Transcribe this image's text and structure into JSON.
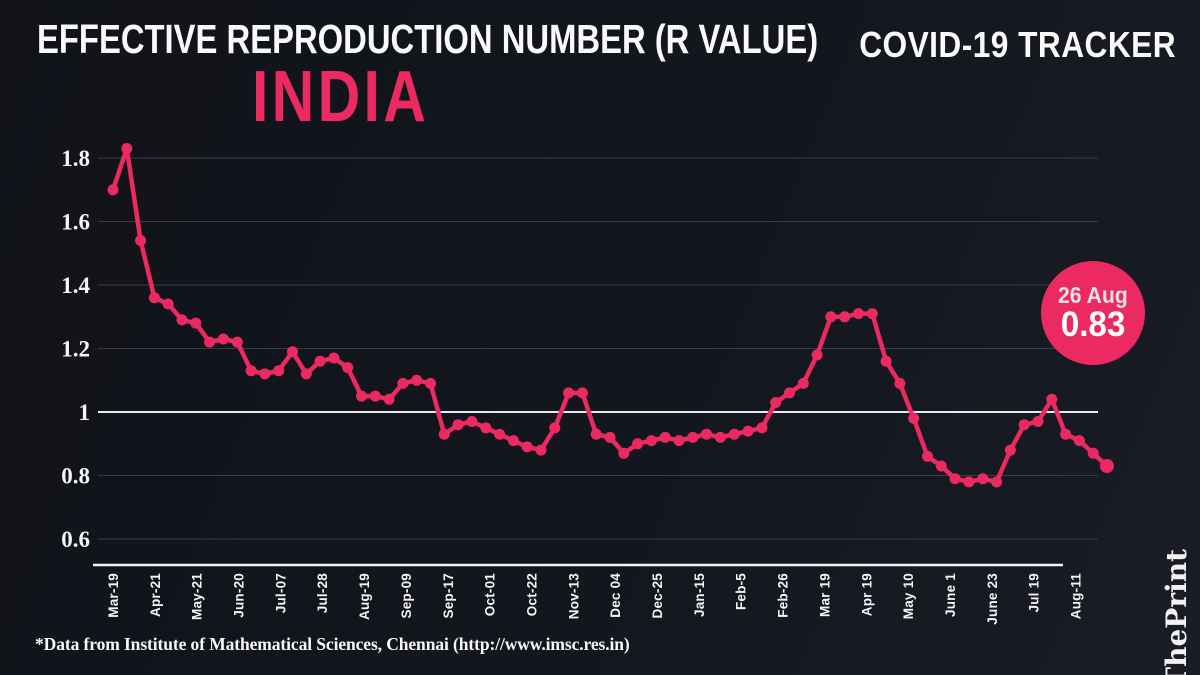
{
  "header": {
    "title": "EFFECTIVE REPRODUCTION NUMBER (R VALUE)",
    "tracker_label": "COVID-19 TRACKER",
    "region": "INDIA"
  },
  "annotation_badge": {
    "date": "26 Aug",
    "value": "0.83"
  },
  "footer": {
    "source_note": "*Data from Institute of Mathematical Sciences, Chennai (http://www.imsc.res.in)"
  },
  "brand": {
    "name_prefix": "The",
    "name_suffix": "Print"
  },
  "colors": {
    "background": "#14161e",
    "accent": "#ec2a62",
    "text": "#f5f4f6",
    "grid": "#383b44",
    "reference_line": "#e8e9ee",
    "axis": "#f2f3f5",
    "badge_date_text": "#e3e0e4",
    "badge_value_text": "#ffffff"
  },
  "chart_data": {
    "type": "line",
    "title": "Effective Reproduction Number (R value) - India",
    "series_name": "R value",
    "x_tick_labels": [
      "Mar-19",
      "Apr-21",
      "May-21",
      "Jun-20",
      "Jul-07",
      "Jul-28",
      "Aug-19",
      "Sep-09",
      "Sep-17",
      "Oct-01",
      "Oct-22",
      "Nov-13",
      "Dec 04",
      "Dec-25",
      "Jan-15",
      "Feb-5",
      "Feb-26",
      "Mar 19",
      "Apr 19",
      "May 10",
      "June 1",
      "June 23",
      "Jul 19",
      "Aug-11"
    ],
    "points_per_tick": 3,
    "values": [
      1.7,
      1.83,
      1.54,
      1.36,
      1.34,
      1.29,
      1.28,
      1.22,
      1.23,
      1.22,
      1.13,
      1.12,
      1.13,
      1.19,
      1.12,
      1.16,
      1.17,
      1.14,
      1.05,
      1.05,
      1.04,
      1.09,
      1.1,
      1.09,
      0.93,
      0.96,
      0.97,
      0.95,
      0.93,
      0.91,
      0.89,
      0.88,
      0.95,
      1.06,
      1.06,
      0.93,
      0.92,
      0.87,
      0.9,
      0.91,
      0.92,
      0.91,
      0.92,
      0.93,
      0.92,
      0.93,
      0.94,
      0.95,
      1.03,
      1.06,
      1.09,
      1.18,
      1.3,
      1.3,
      1.31,
      1.31,
      1.16,
      1.09,
      0.98,
      0.86,
      0.83,
      0.79,
      0.78,
      0.79,
      0.78,
      0.88,
      0.96,
      0.97,
      1.04,
      0.93,
      0.91,
      0.87,
      0.83
    ],
    "y_ticks": [
      1.8,
      1.6,
      1.4,
      1.2,
      1,
      0.8,
      0.6
    ],
    "ylim": [
      0.55,
      1.9
    ],
    "reference_line": 1,
    "grid": "horizontal",
    "legend_position": "none",
    "last_point": {
      "label": "26 Aug",
      "value": 0.83
    }
  }
}
